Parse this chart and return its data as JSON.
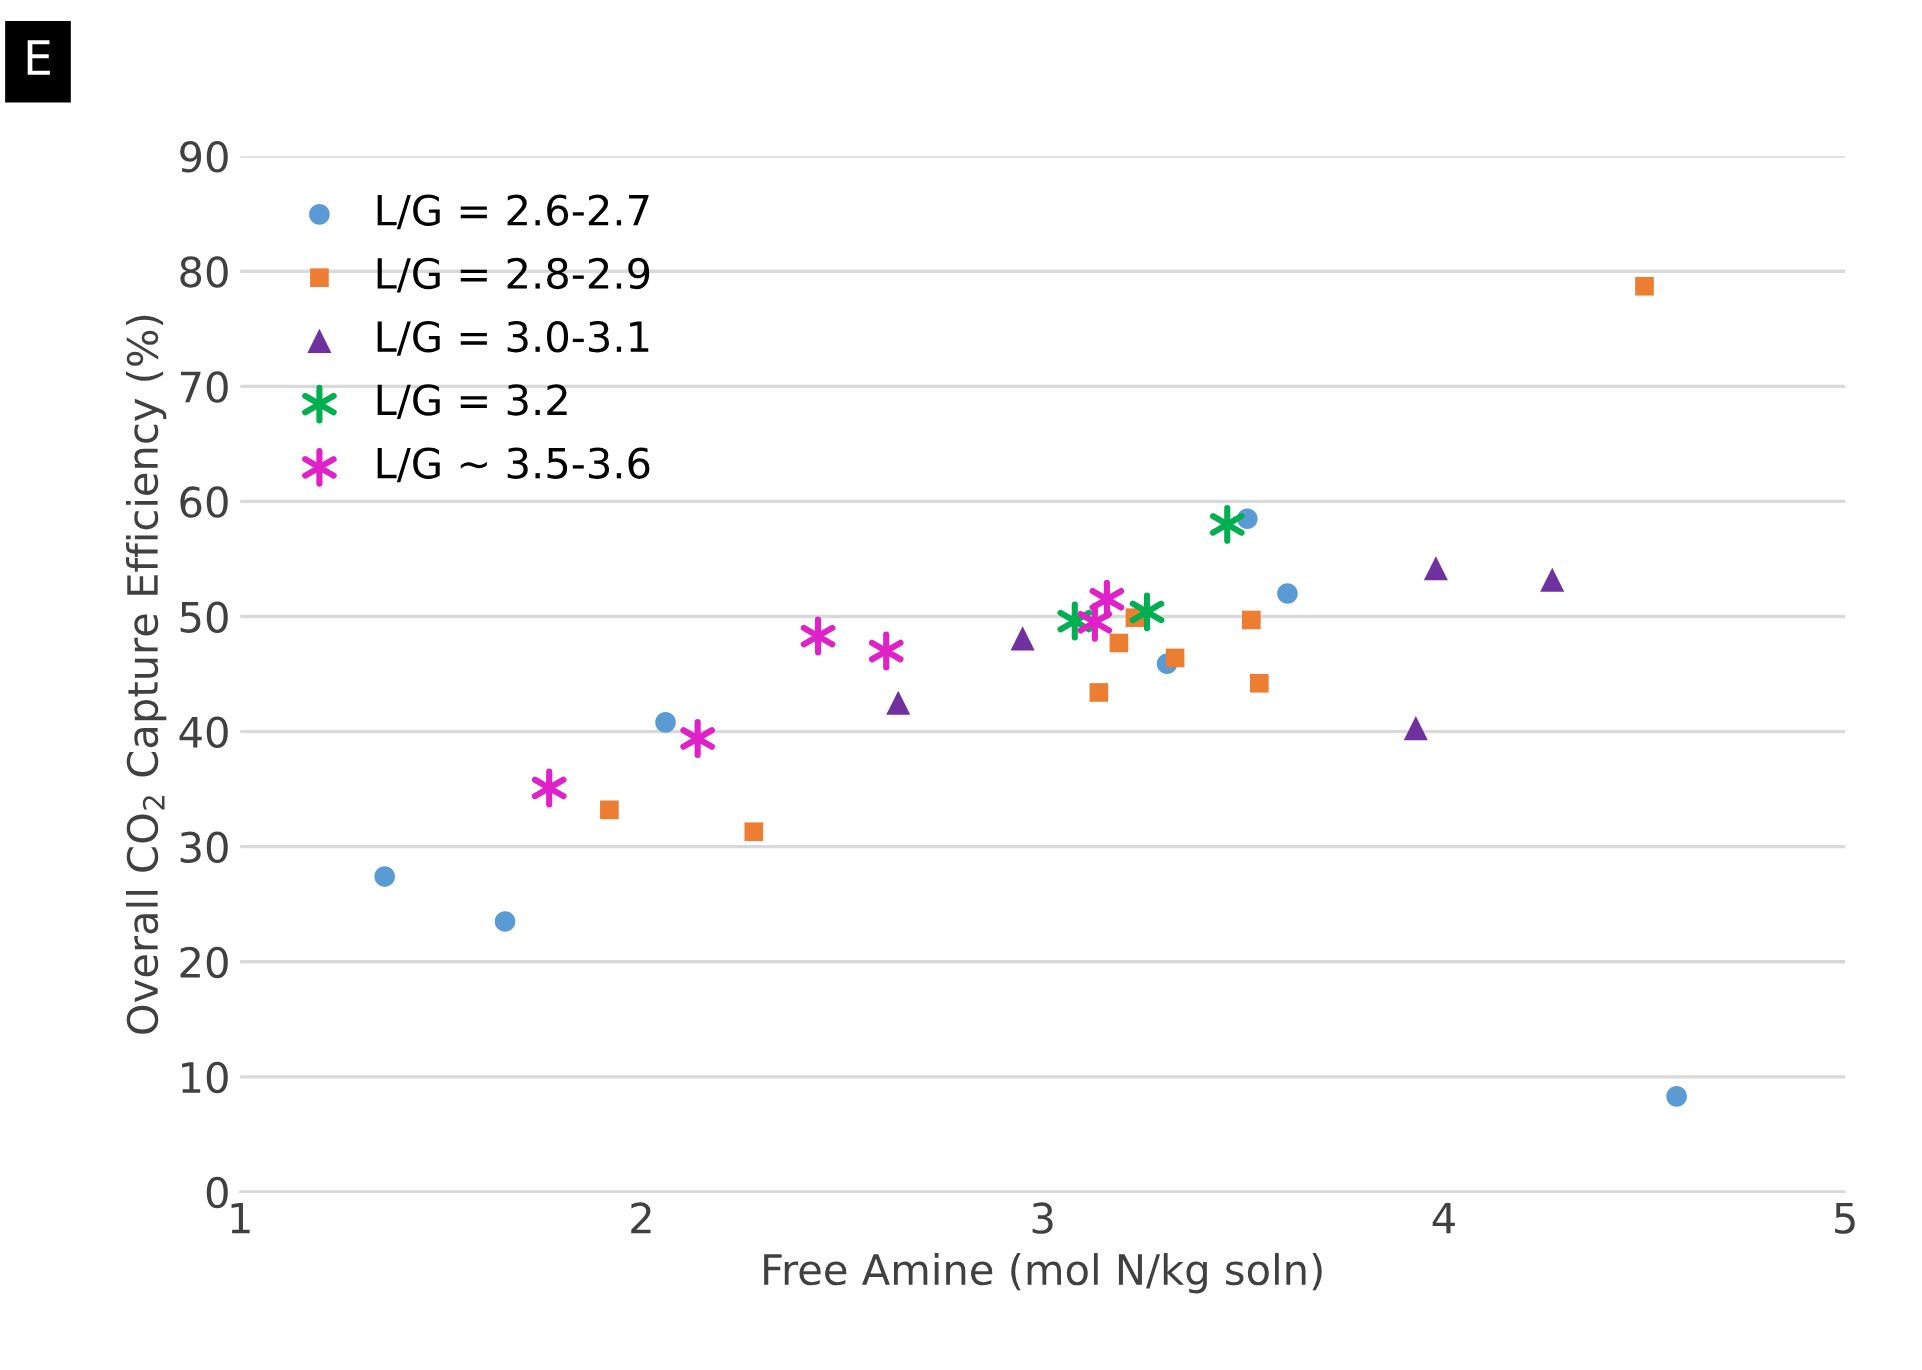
{
  "chart_data": {
    "type": "scatter",
    "xlabel": "Free Amine (mol N/kg soln)",
    "ylabel": "Overall CO$_{2}$ Capture Efficiency (%)",
    "annotations": [
      "E"
    ],
    "xlim": [
      1,
      5
    ],
    "xticks": [
      1,
      2,
      3,
      4,
      5
    ],
    "ylim": [
      0,
      90
    ],
    "yticks": [
      0,
      10,
      20,
      30,
      40,
      50,
      60,
      70,
      80,
      90
    ],
    "grid": "y",
    "legend": "top left",
    "series": [
      {
        "name": "L/G = 2.6-2.7",
        "color": "#5b9bd5",
        "marker": "circle",
        "x": [
          1.36,
          1.66,
          2.06,
          3.31,
          3.51,
          3.61,
          4.58
        ],
        "values": [
          27.4,
          23.5,
          40.8,
          45.9,
          58.5,
          52.0,
          8.3
        ]
      },
      {
        "name": "L/G = 2.8-2.9",
        "color": "#ed7d31",
        "marker": "square",
        "x": [
          1.92,
          2.28,
          3.14,
          3.19,
          3.23,
          3.33,
          3.52,
          3.54,
          4.5
        ],
        "values": [
          33.2,
          31.3,
          43.4,
          47.7,
          49.9,
          46.4,
          49.7,
          44.2,
          78.7
        ]
      },
      {
        "name": "L/G = 3.0-3.1",
        "color": "#7030a0",
        "marker": "triangle",
        "x": [
          2.64,
          2.95,
          3.93,
          3.98,
          4.27
        ],
        "values": [
          42.5,
          48.1,
          40.3,
          54.2,
          53.2
        ]
      },
      {
        "name": "L/G = 3.2",
        "color": "#00b050",
        "marker": "cross",
        "x": [
          3.08,
          3.26,
          3.46
        ],
        "values": [
          49.6,
          50.4,
          58.0
        ]
      },
      {
        "name": "L/G ~ 3.5-3.6",
        "color": "#e020c8",
        "marker": "cross",
        "x": [
          1.77,
          2.14,
          2.44,
          2.61,
          3.13,
          3.16
        ],
        "values": [
          35.1,
          39.4,
          48.3,
          47.0,
          49.5,
          51.5
        ]
      }
    ]
  }
}
